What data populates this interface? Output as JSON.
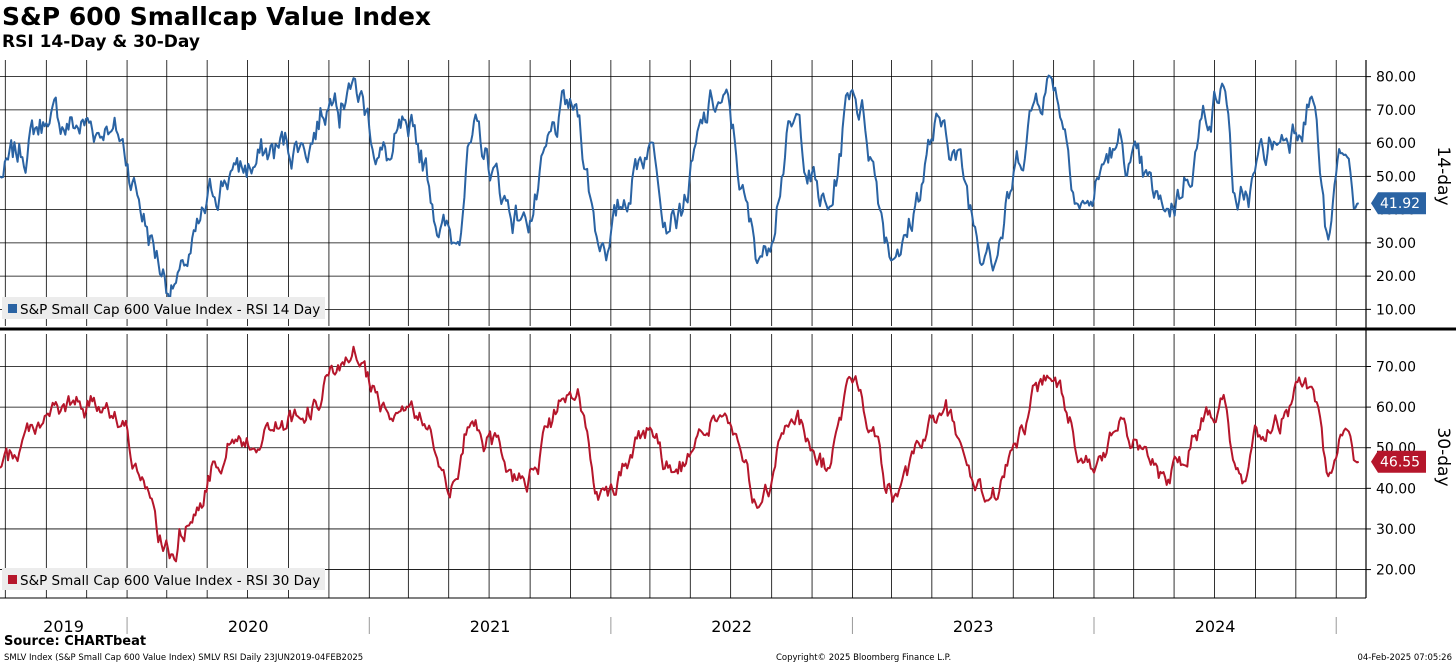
{
  "header": {
    "title": "S&P 600 Smallcap Value Index",
    "subtitle": "RSI 14-Day & 30-Day"
  },
  "footer": {
    "source": "Source: CHARTbeat",
    "left": "SMLV Index (S&P Small Cap 600 Value Index) SMLV RSI  Daily 23JUN2019-04FEB2025",
    "center": "Copyright© 2025 Bloomberg Finance L.P.",
    "right": "04-Feb-2025 07:05:26"
  },
  "colors": {
    "rsi14": "#2a63a3",
    "rsi30": "#b5162b",
    "grid": "#000000",
    "legend_bg": "#ececec"
  },
  "chart_data": [
    {
      "type": "line",
      "panel": "top",
      "axis_title": "14-day",
      "legend": "S&P Small Cap 600 Value Index - RSI 14 Day",
      "current_value": "41.92",
      "ylim": [
        5,
        85
      ],
      "yticks": [
        10,
        20,
        30,
        40,
        50,
        60,
        70,
        80
      ],
      "ytick_labels": [
        "10.00",
        "20.00",
        "30.00",
        "40.00",
        "50.00",
        "60.00",
        "70.00",
        "80.00"
      ],
      "x": [
        "2019-06-23",
        "2019-09-01",
        "2019-12-01",
        "2020-03-15",
        "2020-03-20",
        "2020-06-08",
        "2020-09-20",
        "2020-11-10",
        "2020-12-01",
        "2021-02-01",
        "2021-03-01",
        "2021-05-10",
        "2021-06-01",
        "2021-08-20",
        "2021-11-05",
        "2021-12-20",
        "2022-03-01",
        "2022-04-05",
        "2022-06-15",
        "2022-08-15",
        "2022-10-01",
        "2022-11-25",
        "2023-01-01",
        "2023-03-10",
        "2023-05-15",
        "2023-07-25",
        "2023-10-27",
        "2023-12-20",
        "2024-02-01",
        "2024-04-15",
        "2024-07-15",
        "2024-08-05",
        "2024-10-01",
        "2024-11-25",
        "2024-12-20",
        "2025-01-10",
        "2025-02-04"
      ],
      "values": [
        50,
        66,
        65,
        18,
        22,
        52,
        60,
        75,
        78,
        55,
        62,
        30,
        60,
        38,
        70,
        30,
        60,
        40,
        72,
        26,
        65,
        40,
        76,
        28,
        65,
        30,
        80,
        42,
        58,
        40,
        77,
        40,
        60,
        74,
        31,
        57,
        41.92
      ]
    },
    {
      "type": "line",
      "panel": "bottom",
      "axis_title": "30-day",
      "legend": "S&P Small Cap 600 Value Index - RSI 30 Day",
      "current_value": "46.55",
      "ylim": [
        13,
        78
      ],
      "yticks": [
        20,
        30,
        40,
        50,
        60,
        70
      ],
      "ytick_labels": [
        "20.00",
        "30.00",
        "40.00",
        "50.00",
        "60.00",
        "70.00"
      ],
      "x": [
        "2019-06-23",
        "2019-09-01",
        "2019-12-01",
        "2020-03-15",
        "2020-03-20",
        "2020-06-08",
        "2020-09-20",
        "2020-11-10",
        "2020-12-01",
        "2021-02-01",
        "2021-03-01",
        "2021-05-10",
        "2021-06-01",
        "2021-08-20",
        "2021-11-05",
        "2021-12-20",
        "2022-03-01",
        "2022-04-05",
        "2022-06-15",
        "2022-08-15",
        "2022-10-01",
        "2022-11-25",
        "2023-01-01",
        "2023-03-10",
        "2023-05-15",
        "2023-07-25",
        "2023-10-27",
        "2023-12-20",
        "2024-02-01",
        "2024-04-15",
        "2024-07-15",
        "2024-08-05",
        "2024-10-01",
        "2024-11-25",
        "2024-12-20",
        "2025-01-10",
        "2025-02-04"
      ],
      "values": [
        45,
        58,
        61,
        22,
        30,
        52,
        57,
        68,
        71,
        57,
        60,
        42,
        55,
        43,
        62,
        40,
        55,
        44,
        58,
        36,
        57,
        45,
        66,
        38,
        58,
        37,
        67,
        48,
        54,
        44,
        63,
        45,
        58,
        65,
        43,
        53,
        46.55
      ]
    }
  ],
  "x_axis": {
    "year_labels": [
      "2019",
      "2020",
      "2021",
      "2022",
      "2023",
      "2024"
    ]
  }
}
